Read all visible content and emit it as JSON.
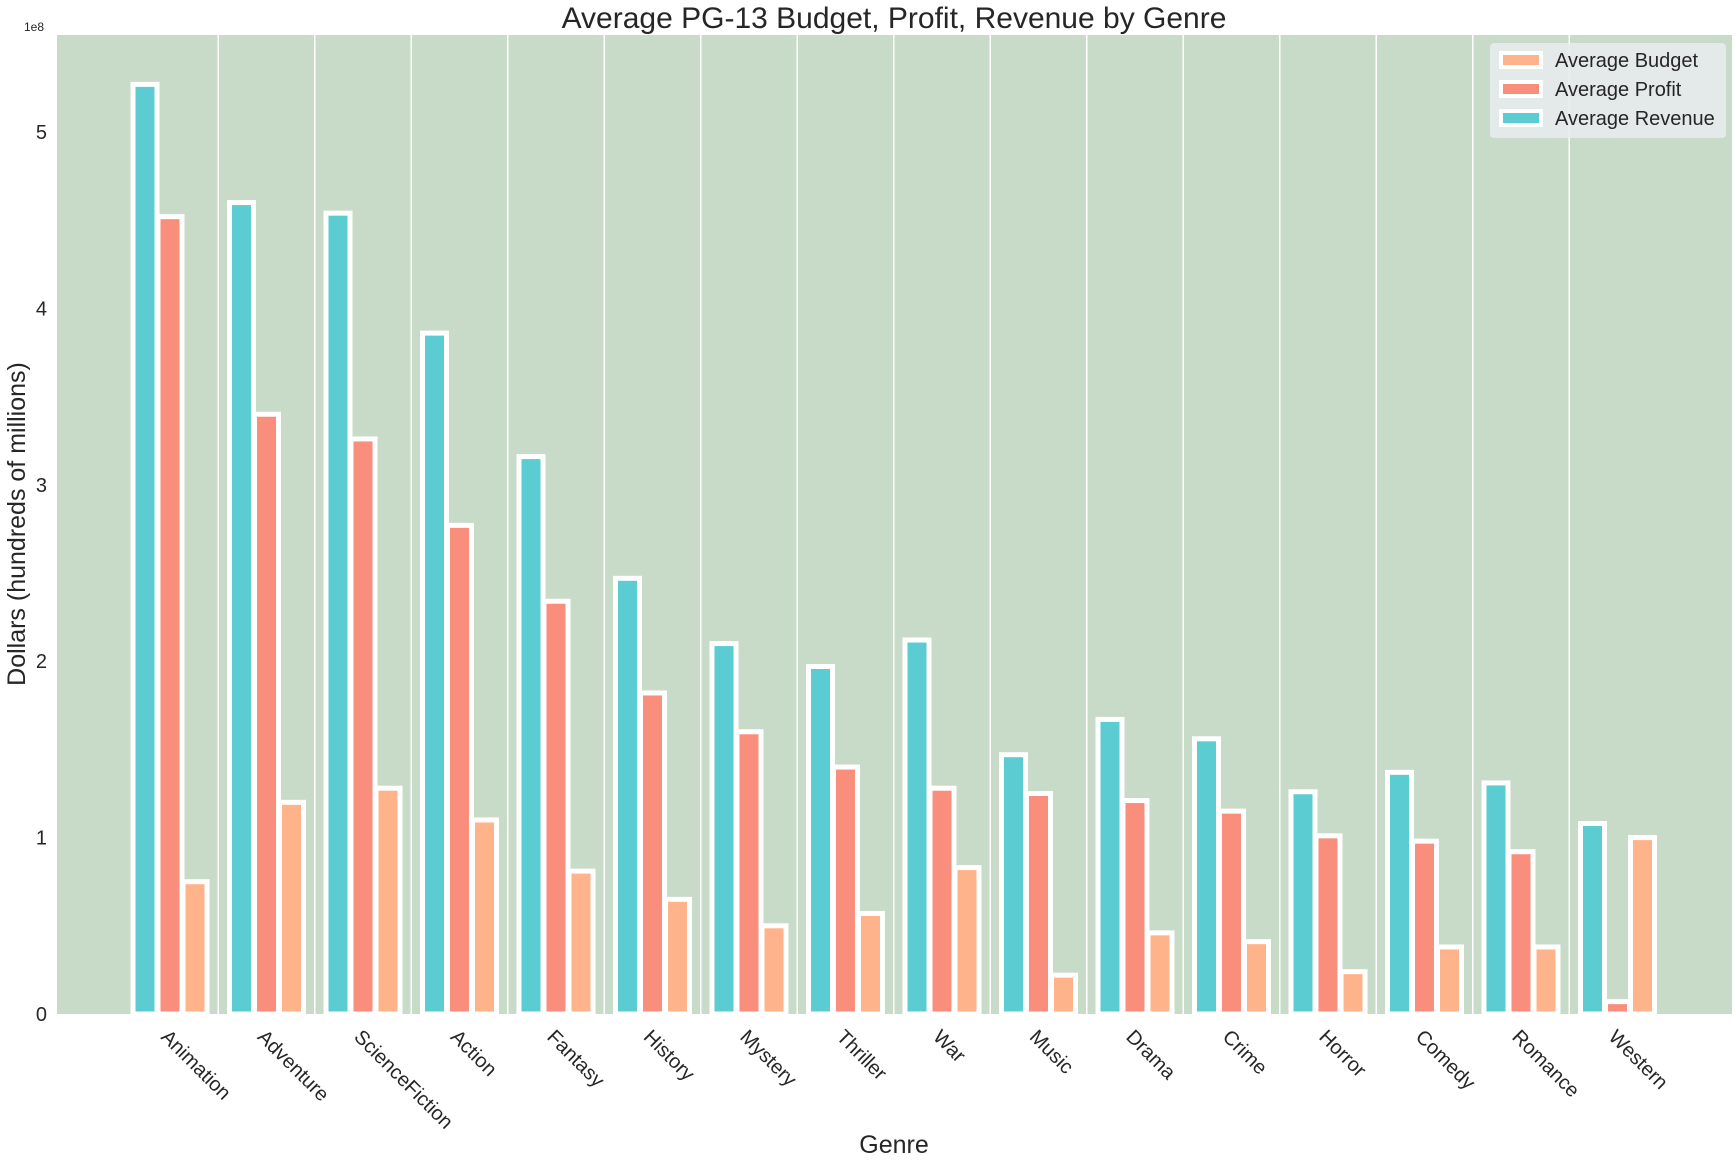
{
  "chart_data": {
    "type": "bar",
    "title": "Average PG-13 Budget, Profit, Revenue by Genre",
    "xlabel": "Genre",
    "ylabel": "Dollars (hundreds of millions)",
    "y_offset_label": "1e8",
    "y_ticks": [
      "0",
      "1",
      "2",
      "3",
      "4",
      "5"
    ],
    "ylim": [
      0,
      5.55
    ],
    "grid": "vertical",
    "legend_position": "top-right",
    "categories": [
      "Animation",
      "Adventure",
      "ScienceFiction",
      "Action",
      "Fantasy",
      "History",
      "Mystery",
      "Thriller",
      "War",
      "Music",
      "Drama",
      "Crime",
      "Horror",
      "Comedy",
      "Romance",
      "Western"
    ],
    "series": [
      {
        "name": "Average Budget",
        "color": "#FFB38A",
        "values": [
          0.75,
          1.2,
          1.28,
          1.1,
          0.81,
          0.65,
          0.5,
          0.57,
          0.83,
          0.22,
          0.46,
          0.41,
          0.24,
          0.38,
          0.38,
          1.0
        ]
      },
      {
        "name": "Average Profit",
        "color": "#FA8E7C",
        "values": [
          4.52,
          3.4,
          3.26,
          2.77,
          2.34,
          1.82,
          1.6,
          1.4,
          1.28,
          1.25,
          1.21,
          1.15,
          1.01,
          0.98,
          0.92,
          0.07
        ]
      },
      {
        "name": "Average Revenue",
        "color": "#5ACCD2",
        "values": [
          5.27,
          4.6,
          4.54,
          3.86,
          3.16,
          2.47,
          2.1,
          1.97,
          2.12,
          1.47,
          1.67,
          1.56,
          1.26,
          1.37,
          1.31,
          1.08
        ]
      }
    ],
    "plot_background": "#C8DBC8",
    "bar_edge_color": "#FFFFFF"
  }
}
